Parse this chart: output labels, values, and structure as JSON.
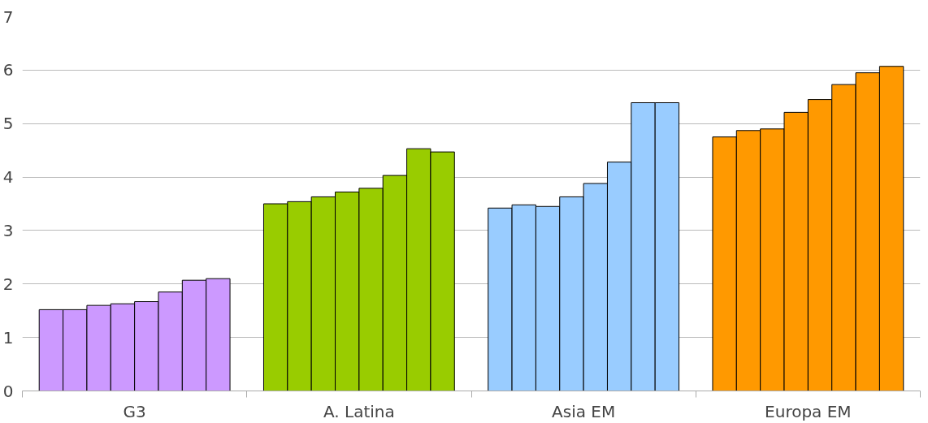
{
  "chart_data": {
    "type": "bar",
    "categories": [
      "G3",
      "A. Latina",
      "Asia EM",
      "Europa EM"
    ],
    "series": [
      {
        "colors": [
          "#cc99ff",
          "#99cc00",
          "#99ccff",
          "#ff9900"
        ],
        "values": [
          1.52,
          3.5,
          3.42,
          4.75
        ]
      },
      {
        "colors": [
          "#cc99ff",
          "#99cc00",
          "#99ccff",
          "#ff9900"
        ],
        "values": [
          1.52,
          3.54,
          3.48,
          4.87
        ]
      },
      {
        "colors": [
          "#cc99ff",
          "#99cc00",
          "#99ccff",
          "#ff9900"
        ],
        "values": [
          1.6,
          3.63,
          3.45,
          4.9
        ]
      },
      {
        "colors": [
          "#cc99ff",
          "#99cc00",
          "#99ccff",
          "#ff9900"
        ],
        "values": [
          1.63,
          3.72,
          3.63,
          5.21
        ]
      },
      {
        "colors": [
          "#cc99ff",
          "#99cc00",
          "#99ccff",
          "#ff9900"
        ],
        "values": [
          1.67,
          3.79,
          3.88,
          5.45
        ]
      },
      {
        "colors": [
          "#cc99ff",
          "#99cc00",
          "#99ccff",
          "#ff9900"
        ],
        "values": [
          1.85,
          4.03,
          4.28,
          5.73
        ]
      },
      {
        "colors": [
          "#cc99ff",
          "#99cc00",
          "#99ccff",
          "#ff9900"
        ],
        "values": [
          2.07,
          4.53,
          5.39,
          5.95
        ]
      },
      {
        "colors": [
          "#cc99ff",
          "#99cc00",
          "#99ccff",
          "#ff9900"
        ],
        "values": [
          2.1,
          4.47,
          5.39,
          6.07
        ]
      }
    ],
    "ylim": [
      0,
      7
    ],
    "yticks": [
      0,
      1,
      2,
      3,
      4,
      5,
      6,
      7
    ],
    "grid": "y"
  }
}
